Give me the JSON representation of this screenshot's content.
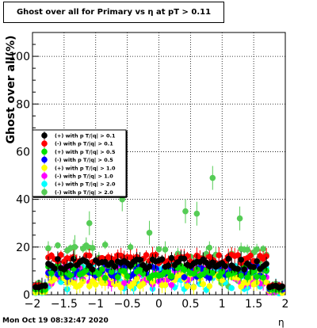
{
  "chart_data": {
    "type": "scatter",
    "title": "Ghost over all for Primary vs   η at pT > 0.11",
    "ylabel": "Ghost over all(%)",
    "xlabel": "η",
    "xlim": [
      -2,
      2
    ],
    "ylim": [
      0,
      110
    ],
    "xticks": [
      "−2",
      "−1.5",
      "−1",
      "−0.5",
      "0",
      "0.5",
      "1",
      "1.5",
      "2"
    ],
    "yticks": [
      "0",
      "20",
      "40",
      "60",
      "80",
      "100"
    ],
    "grid": true,
    "legend_position": "middle-left",
    "series": [
      {
        "name": "(+) with p T/|q| > 0.1",
        "color": "#000000",
        "level": 13,
        "spread": 2.5
      },
      {
        "name": "(-) with p T/|q| > 0.1",
        "color": "#ff0000",
        "level": 15,
        "spread": 1.8
      },
      {
        "name": "(+) with p T/|q| > 0.5",
        "color": "#00e000",
        "level": 10,
        "spread": 3
      },
      {
        "name": "(-) with p T/|q| > 0.5",
        "color": "#0000ff",
        "level": 10,
        "spread": 3
      },
      {
        "name": "(+) with p T/|q| > 1.0",
        "color": "#ffff00",
        "level": 6,
        "spread": 3
      },
      {
        "name": "(-) with p T/|q| > 1.0",
        "color": "#ff00ff",
        "level": 8,
        "spread": 4
      },
      {
        "name": "(+) with p T/|q| > 2.0",
        "color": "#00ffff",
        "level": 8,
        "spread": 6
      },
      {
        "name": "(-) with p T/|q| > 2.0",
        "color": "#55cc55",
        "level": 12,
        "spread": 9
      }
    ],
    "highlight_points": [
      {
        "x": -1.33,
        "y": 20
      },
      {
        "x": -1.1,
        "y": 30
      },
      {
        "x": -0.58,
        "y": 40
      },
      {
        "x": 0.85,
        "y": 49
      },
      {
        "x": 1.28,
        "y": 32
      },
      {
        "x": 0.6,
        "y": 34
      },
      {
        "x": -0.15,
        "y": 26
      },
      {
        "x": 0.42,
        "y": 35
      }
    ]
  },
  "footer": {
    "timestamp": "Mon Oct 19 08:32:47 2020"
  }
}
